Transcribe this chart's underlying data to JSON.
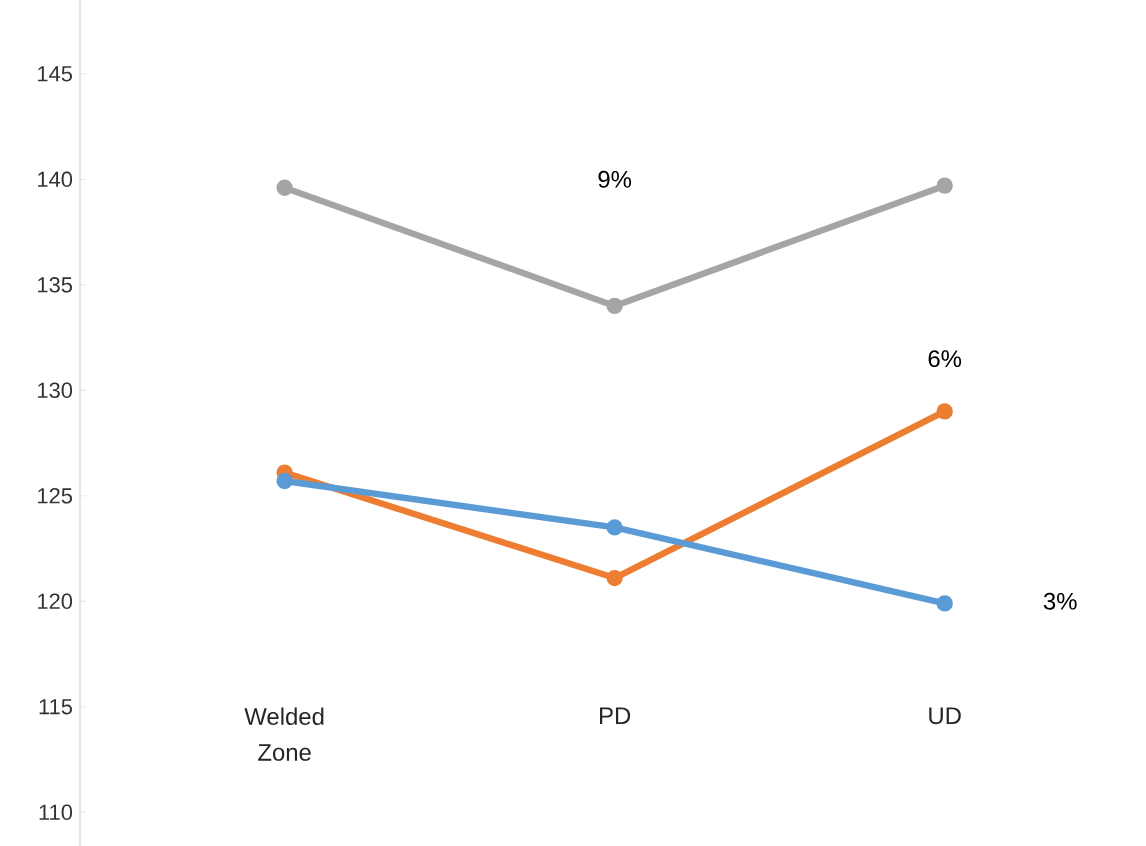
{
  "chart_data": {
    "type": "line",
    "categories": [
      "Welded Zone",
      "PD",
      "UD"
    ],
    "series": [
      {
        "color": "#a5a5a5",
        "values": [
          139.6,
          134.0,
          139.7
        ]
      },
      {
        "color": "#ed7d31",
        "values": [
          126.1,
          121.1,
          129.0
        ]
      },
      {
        "color": "#5b9bd5",
        "values": [
          125.7,
          123.5,
          119.9
        ]
      }
    ],
    "annotations": [
      "9%",
      "6%",
      "3%"
    ],
    "ylim": [
      108.4,
      148.5
    ],
    "yticks": [
      110,
      115,
      120,
      125,
      130,
      135,
      140,
      145
    ],
    "grid": false,
    "marker": "circle",
    "line_style": "solid"
  }
}
